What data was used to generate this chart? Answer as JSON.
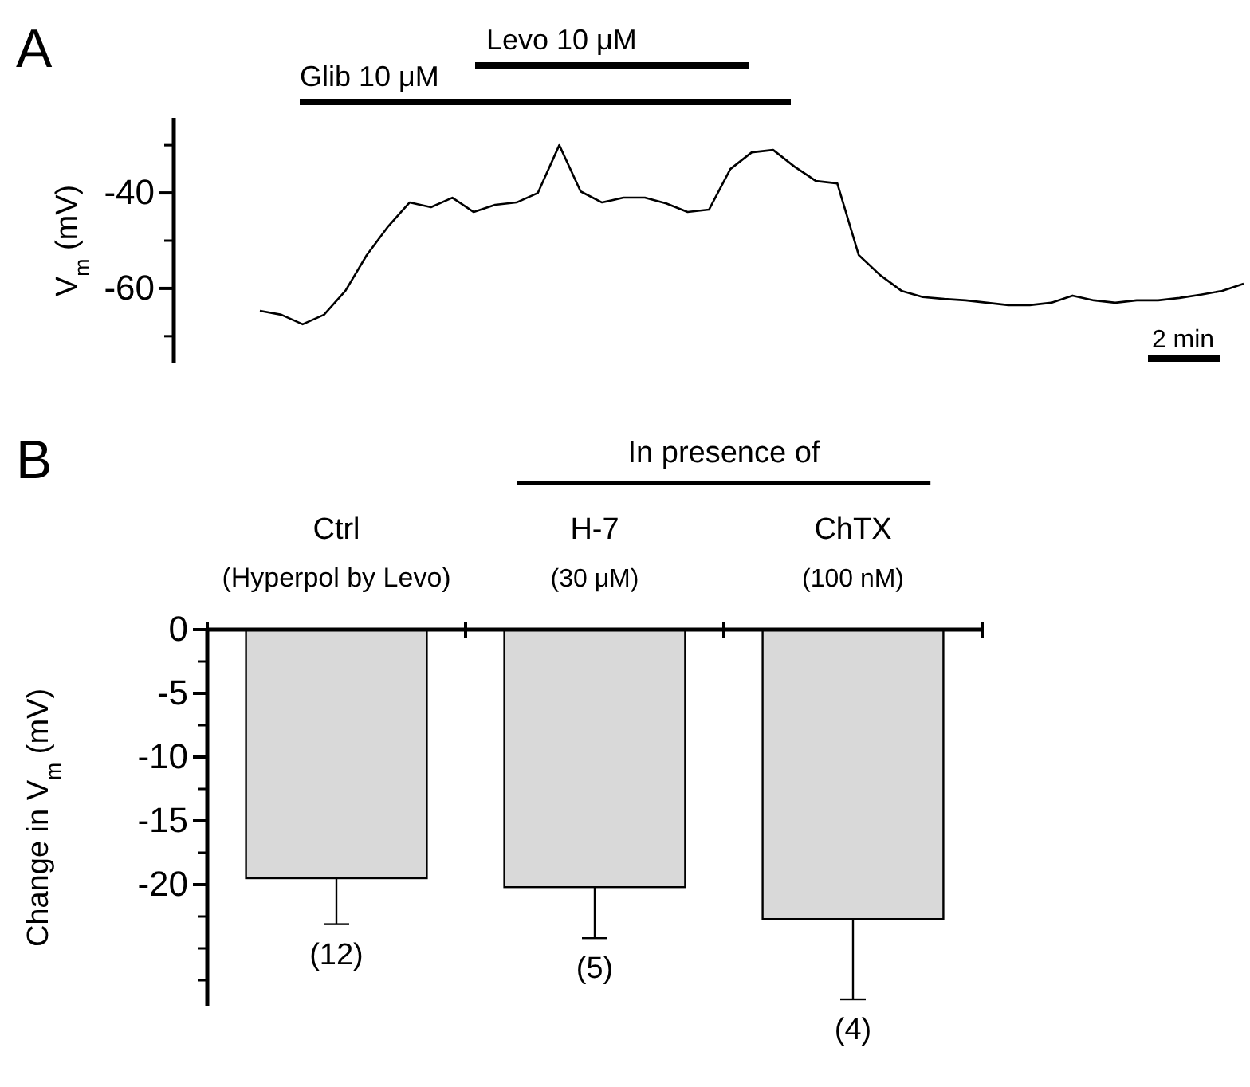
{
  "chart_data": [
    {
      "type": "line",
      "title": "A",
      "ylabel": "V$_{m}$ (mV)",
      "ylim": [
        -75.7,
        -24.3
      ],
      "tick_labels": "y",
      "yticks": [
        -40,
        -60
      ],
      "categories": [
        null,
        null,
        null,
        null,
        null,
        null,
        null,
        null,
        null,
        null,
        null,
        null,
        null,
        null,
        null,
        null,
        null,
        null,
        null,
        null,
        null,
        null,
        null,
        null,
        null,
        null,
        null,
        null,
        null,
        null,
        null,
        null,
        null,
        null,
        null,
        null,
        null,
        null,
        null,
        null,
        null,
        null,
        null,
        null,
        null,
        null,
        null
      ],
      "series": [
        {
          "color": "#000000",
          "values": [
            -64.7,
            -65.5,
            -67.5,
            -65.5,
            -60.5,
            -53,
            -47,
            -42,
            -43,
            -41,
            -44,
            -42.5,
            -42,
            -40,
            -30,
            -39.7,
            -42,
            -41,
            -41,
            -42.2,
            -44,
            -43.5,
            -35,
            -31.5,
            -31,
            -34.5,
            -37.5,
            -38,
            -53,
            -57.2,
            -60.5,
            -61.8,
            -62.2,
            -62.5,
            -63,
            -63.5,
            -63.5,
            -63,
            -61.5,
            -62.5,
            -63,
            -62.5,
            -62.5,
            -62,
            -61.3,
            -60.5,
            -59
          ]
        }
      ],
      "annotations": [
        "Glib 10 μM",
        "Levo 10 μM",
        "2 min"
      ]
    },
    {
      "type": "bar",
      "title": "B",
      "ylabel": "Change in V$_{m}$ (mV)",
      "categories": [
        "Ctrl",
        "H-7",
        "ChTX"
      ],
      "values": [
        -19.5,
        -20.2,
        -22.7
      ],
      "color": "#d9d9d9",
      "errors": [
        [
          -23.1,
          -19.5
        ],
        [
          -24.2,
          -20.2
        ],
        [
          -29.0,
          -22.7
        ]
      ],
      "ylim": [
        -29.5,
        0
      ],
      "yticks": [
        0,
        -5,
        -10,
        -15,
        -20
      ],
      "annotations": [
        "In presence of",
        "(Hyperpol by Levo)",
        "(30 μM)",
        "(100 nM)",
        {
          "text": "(12)",
          "x": "Ctrl",
          "y": -23.1
        },
        {
          "text": "(5)",
          "x": "H-7",
          "y": -24.2
        },
        {
          "text": "(4)",
          "x": "ChTX",
          "y": -29.0
        }
      ]
    }
  ]
}
